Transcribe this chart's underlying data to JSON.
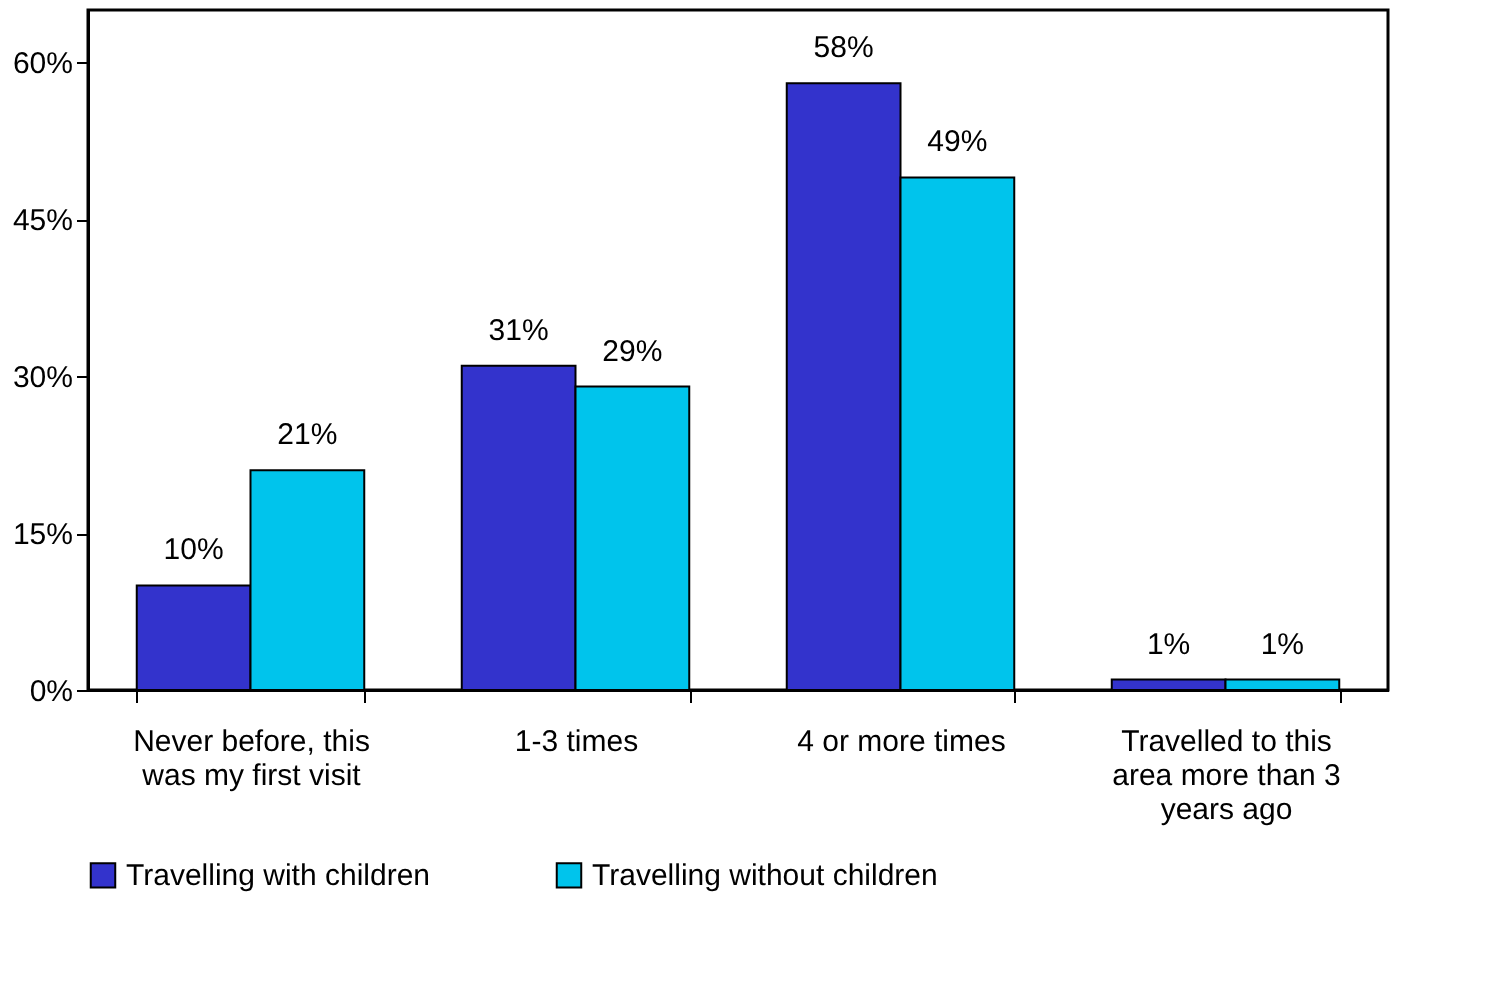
{
  "chart_data": {
    "type": "bar",
    "categories": [
      "Never before, this was my first visit",
      "1-3 times",
      "4 or more times",
      "Travelled to this area more than 3 years ago"
    ],
    "series": [
      {
        "name": "Travelling with children",
        "color": "#3333cc",
        "values": [
          10,
          31,
          58,
          1
        ],
        "value_labels": [
          "10%",
          "31%",
          "58%",
          "1%"
        ]
      },
      {
        "name": "Travelling without children",
        "color": "#00c4ec",
        "values": [
          21,
          29,
          49,
          1
        ],
        "value_labels": [
          "21%",
          "29%",
          "49%",
          "1%"
        ]
      }
    ],
    "ylim": [
      0,
      65
    ],
    "yticks": [
      {
        "value": 0,
        "label": "0%"
      },
      {
        "value": 15,
        "label": "15%"
      },
      {
        "value": 30,
        "label": "30%"
      },
      {
        "value": 45,
        "label": "45%"
      },
      {
        "value": 60,
        "label": "60%"
      }
    ],
    "grid": false,
    "legend": "bottom"
  }
}
